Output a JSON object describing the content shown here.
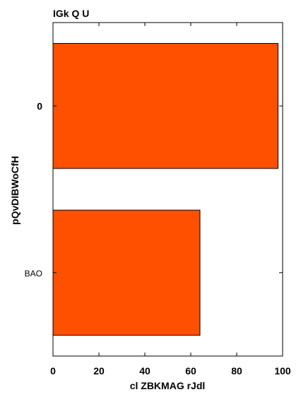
{
  "chart_data": {
    "type": "bar",
    "orientation": "horizontal",
    "title": "IGk Q U",
    "xlabel": "cl ZBKMAG rJdl",
    "ylabel": "pQvDIBWoCfH",
    "categories": [
      "0",
      "BAO"
    ],
    "values": [
      98,
      64
    ],
    "xlim": [
      0,
      100
    ],
    "xticks": [
      "0",
      "20",
      "40",
      "60",
      "80",
      "100"
    ],
    "bar_color": "#ff5000",
    "grid": false,
    "legend": "none"
  }
}
